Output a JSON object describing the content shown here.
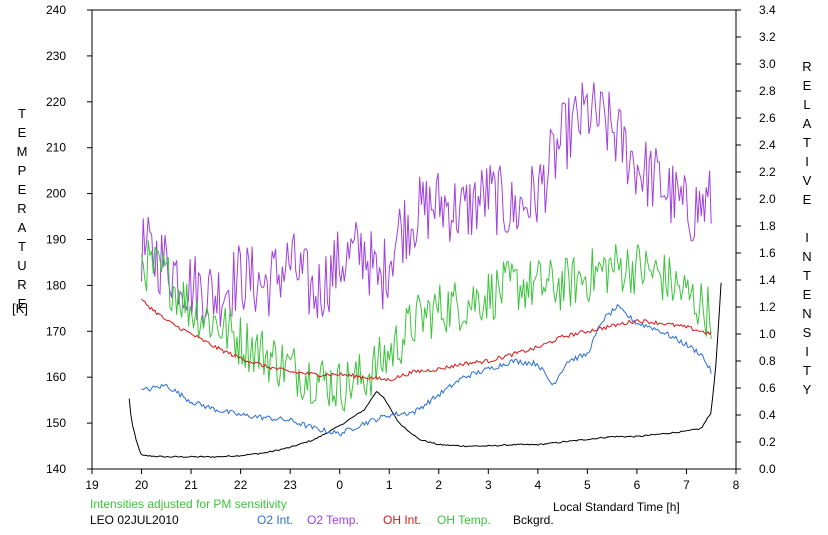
{
  "chart_data": {
    "type": "line",
    "note_label": "Intensities adjusted for PM sensitivity",
    "station_label": "LEO 02JUL2010",
    "xlabel": "Local Standard Time [h]",
    "ylabel_left_letters": [
      "T",
      "E",
      "M",
      "P",
      "E",
      "R",
      "A",
      "T",
      "U",
      "R",
      "E"
    ],
    "ylabel_left_unit": "[K]",
    "ylabel_right_letters": [
      "R",
      "E",
      "L",
      "A",
      "T",
      "I",
      "V",
      "E",
      " ",
      "I",
      "N",
      "T",
      "E",
      "N",
      "S",
      "I",
      "T",
      "Y"
    ],
    "x_ticks": [
      19,
      20,
      21,
      22,
      23,
      0,
      1,
      2,
      3,
      4,
      5,
      6,
      7,
      8
    ],
    "x_tick_labels": [
      "19",
      "20",
      "21",
      "22",
      "23",
      "0",
      "1",
      "2",
      "3",
      "4",
      "5",
      "6",
      "7",
      "8"
    ],
    "xlim": [
      19,
      32
    ],
    "y_left_ticks": [
      140,
      150,
      160,
      170,
      180,
      190,
      200,
      210,
      220,
      230,
      240
    ],
    "y_left_tick_labels": [
      "140",
      "150",
      "160",
      "170",
      "180",
      "190",
      "200",
      "210",
      "220",
      "230",
      "240"
    ],
    "ylim_left": [
      140,
      240
    ],
    "y_right_ticks": [
      0.0,
      0.2,
      0.4,
      0.6,
      0.8,
      1.0,
      1.2,
      1.4,
      1.6,
      1.8,
      2.0,
      2.2,
      2.4,
      2.6,
      2.8,
      3.0,
      3.2,
      3.4
    ],
    "y_right_tick_labels": [
      "0.0",
      "0.2",
      "0.4",
      "0.6",
      "0.8",
      "1.0",
      "1.2",
      "1.4",
      "1.6",
      "1.8",
      "2.0",
      "2.2",
      "2.4",
      "2.6",
      "2.8",
      "3.0",
      "3.2",
      "3.4"
    ],
    "ylim_right": [
      0,
      3.4
    ],
    "series": [
      {
        "name": "O2 Int.",
        "color": "#2a6fd6",
        "axis": "right",
        "noise": 0.02,
        "x": [
          20.0,
          20.5,
          21.0,
          21.5,
          22.0,
          22.5,
          23.0,
          23.5,
          24.0,
          24.5,
          25.0,
          25.5,
          26.0,
          26.5,
          27.0,
          27.5,
          28.0,
          28.3,
          28.6,
          29.0,
          29.3,
          29.6,
          30.0,
          30.3,
          30.6,
          31.0,
          31.3,
          31.5
        ],
        "values": [
          0.58,
          0.62,
          0.5,
          0.44,
          0.4,
          0.38,
          0.36,
          0.3,
          0.26,
          0.34,
          0.4,
          0.42,
          0.55,
          0.68,
          0.74,
          0.8,
          0.78,
          0.62,
          0.8,
          0.85,
          1.1,
          1.2,
          1.08,
          1.05,
          1.0,
          0.92,
          0.85,
          0.72
        ]
      },
      {
        "name": "O2 Temp.",
        "color": "#a040e0",
        "axis": "left",
        "noise": 8,
        "x": [
          20.0,
          20.5,
          21.0,
          21.5,
          22.0,
          22.5,
          23.0,
          23.5,
          24.0,
          24.5,
          24.8,
          25.2,
          25.6,
          26.0,
          26.5,
          27.0,
          27.5,
          28.0,
          28.5,
          29.0,
          29.5,
          30.0,
          30.5,
          31.0,
          31.5
        ],
        "values": [
          188,
          185,
          180,
          178,
          182,
          180,
          185,
          178,
          185,
          188,
          180,
          192,
          196,
          198,
          196,
          200,
          196,
          200,
          212,
          218,
          214,
          206,
          202,
          196,
          198
        ]
      },
      {
        "name": "OH Int.",
        "color": "#d81818",
        "axis": "right",
        "noise": 0.015,
        "x": [
          20.0,
          20.5,
          21.0,
          21.5,
          22.0,
          22.5,
          23.0,
          23.5,
          24.0,
          24.5,
          25.0,
          25.5,
          26.0,
          26.5,
          27.0,
          27.5,
          28.0,
          28.5,
          29.0,
          29.5,
          30.0,
          30.5,
          31.0,
          31.5
        ],
        "values": [
          1.25,
          1.1,
          1.0,
          0.9,
          0.82,
          0.76,
          0.72,
          0.7,
          0.7,
          0.68,
          0.66,
          0.72,
          0.74,
          0.78,
          0.8,
          0.85,
          0.9,
          0.98,
          1.02,
          1.06,
          1.1,
          1.08,
          1.05,
          1.0
        ]
      },
      {
        "name": "OH Temp.",
        "color": "#3cc43c",
        "axis": "left",
        "noise": 6,
        "x": [
          20.0,
          20.5,
          21.0,
          21.5,
          22.0,
          22.5,
          23.0,
          23.5,
          24.0,
          24.5,
          25.0,
          25.5,
          26.0,
          26.5,
          27.0,
          27.5,
          28.0,
          28.5,
          29.0,
          29.5,
          30.0,
          30.5,
          31.0,
          31.5
        ],
        "values": [
          185,
          182,
          175,
          172,
          168,
          165,
          162,
          160,
          158,
          160,
          165,
          172,
          175,
          176,
          178,
          180,
          180,
          180,
          182,
          184,
          184,
          182,
          178,
          174
        ]
      },
      {
        "name": "Bckgrd.",
        "color": "#000000",
        "axis": "right",
        "noise": 0.005,
        "x": [
          19.75,
          19.8,
          19.9,
          20.0,
          20.5,
          21.0,
          21.5,
          22.0,
          22.5,
          23.0,
          23.5,
          24.0,
          24.5,
          24.75,
          24.9,
          25.2,
          25.6,
          26.0,
          26.5,
          27.0,
          27.5,
          28.0,
          28.5,
          29.0,
          29.5,
          30.0,
          30.5,
          31.0,
          31.3,
          31.5,
          31.6,
          31.7
        ],
        "values": [
          0.52,
          0.35,
          0.2,
          0.1,
          0.09,
          0.09,
          0.09,
          0.1,
          0.12,
          0.16,
          0.22,
          0.32,
          0.44,
          0.58,
          0.52,
          0.34,
          0.22,
          0.18,
          0.17,
          0.17,
          0.18,
          0.18,
          0.2,
          0.22,
          0.24,
          0.24,
          0.26,
          0.28,
          0.3,
          0.42,
          0.8,
          1.38
        ]
      }
    ]
  }
}
